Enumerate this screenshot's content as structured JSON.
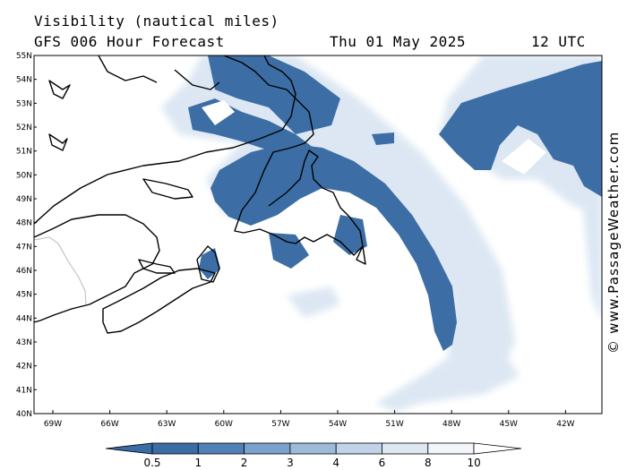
{
  "header": {
    "title": "Visibility (nautical miles)",
    "subtitle": "GFS 006 Hour Forecast",
    "date": "Thu 01 May 2025",
    "time": "12 UTC"
  },
  "credit": "© www.PassageWeather.com",
  "map": {
    "lat_labels": [
      "55N",
      "54N",
      "53N",
      "52N",
      "51N",
      "50N",
      "49N",
      "48N",
      "47N",
      "46N",
      "45N",
      "44N",
      "43N",
      "42N",
      "41N",
      "40N"
    ],
    "lon_labels": [
      "69W",
      "66W",
      "63W",
      "60W",
      "57W",
      "54W",
      "51W",
      "48W",
      "45W",
      "42W"
    ],
    "fog_color": "#3c6ea5"
  },
  "legend": {
    "labels": [
      "0.5",
      "1",
      "2",
      "3",
      "4",
      "6",
      "8",
      "10"
    ],
    "colors": [
      "#3a6ca5",
      "#4f80b8",
      "#7aa0cb",
      "#9dbad9",
      "#c1d3e8",
      "#dee8f3",
      "#f2f6fb"
    ]
  }
}
